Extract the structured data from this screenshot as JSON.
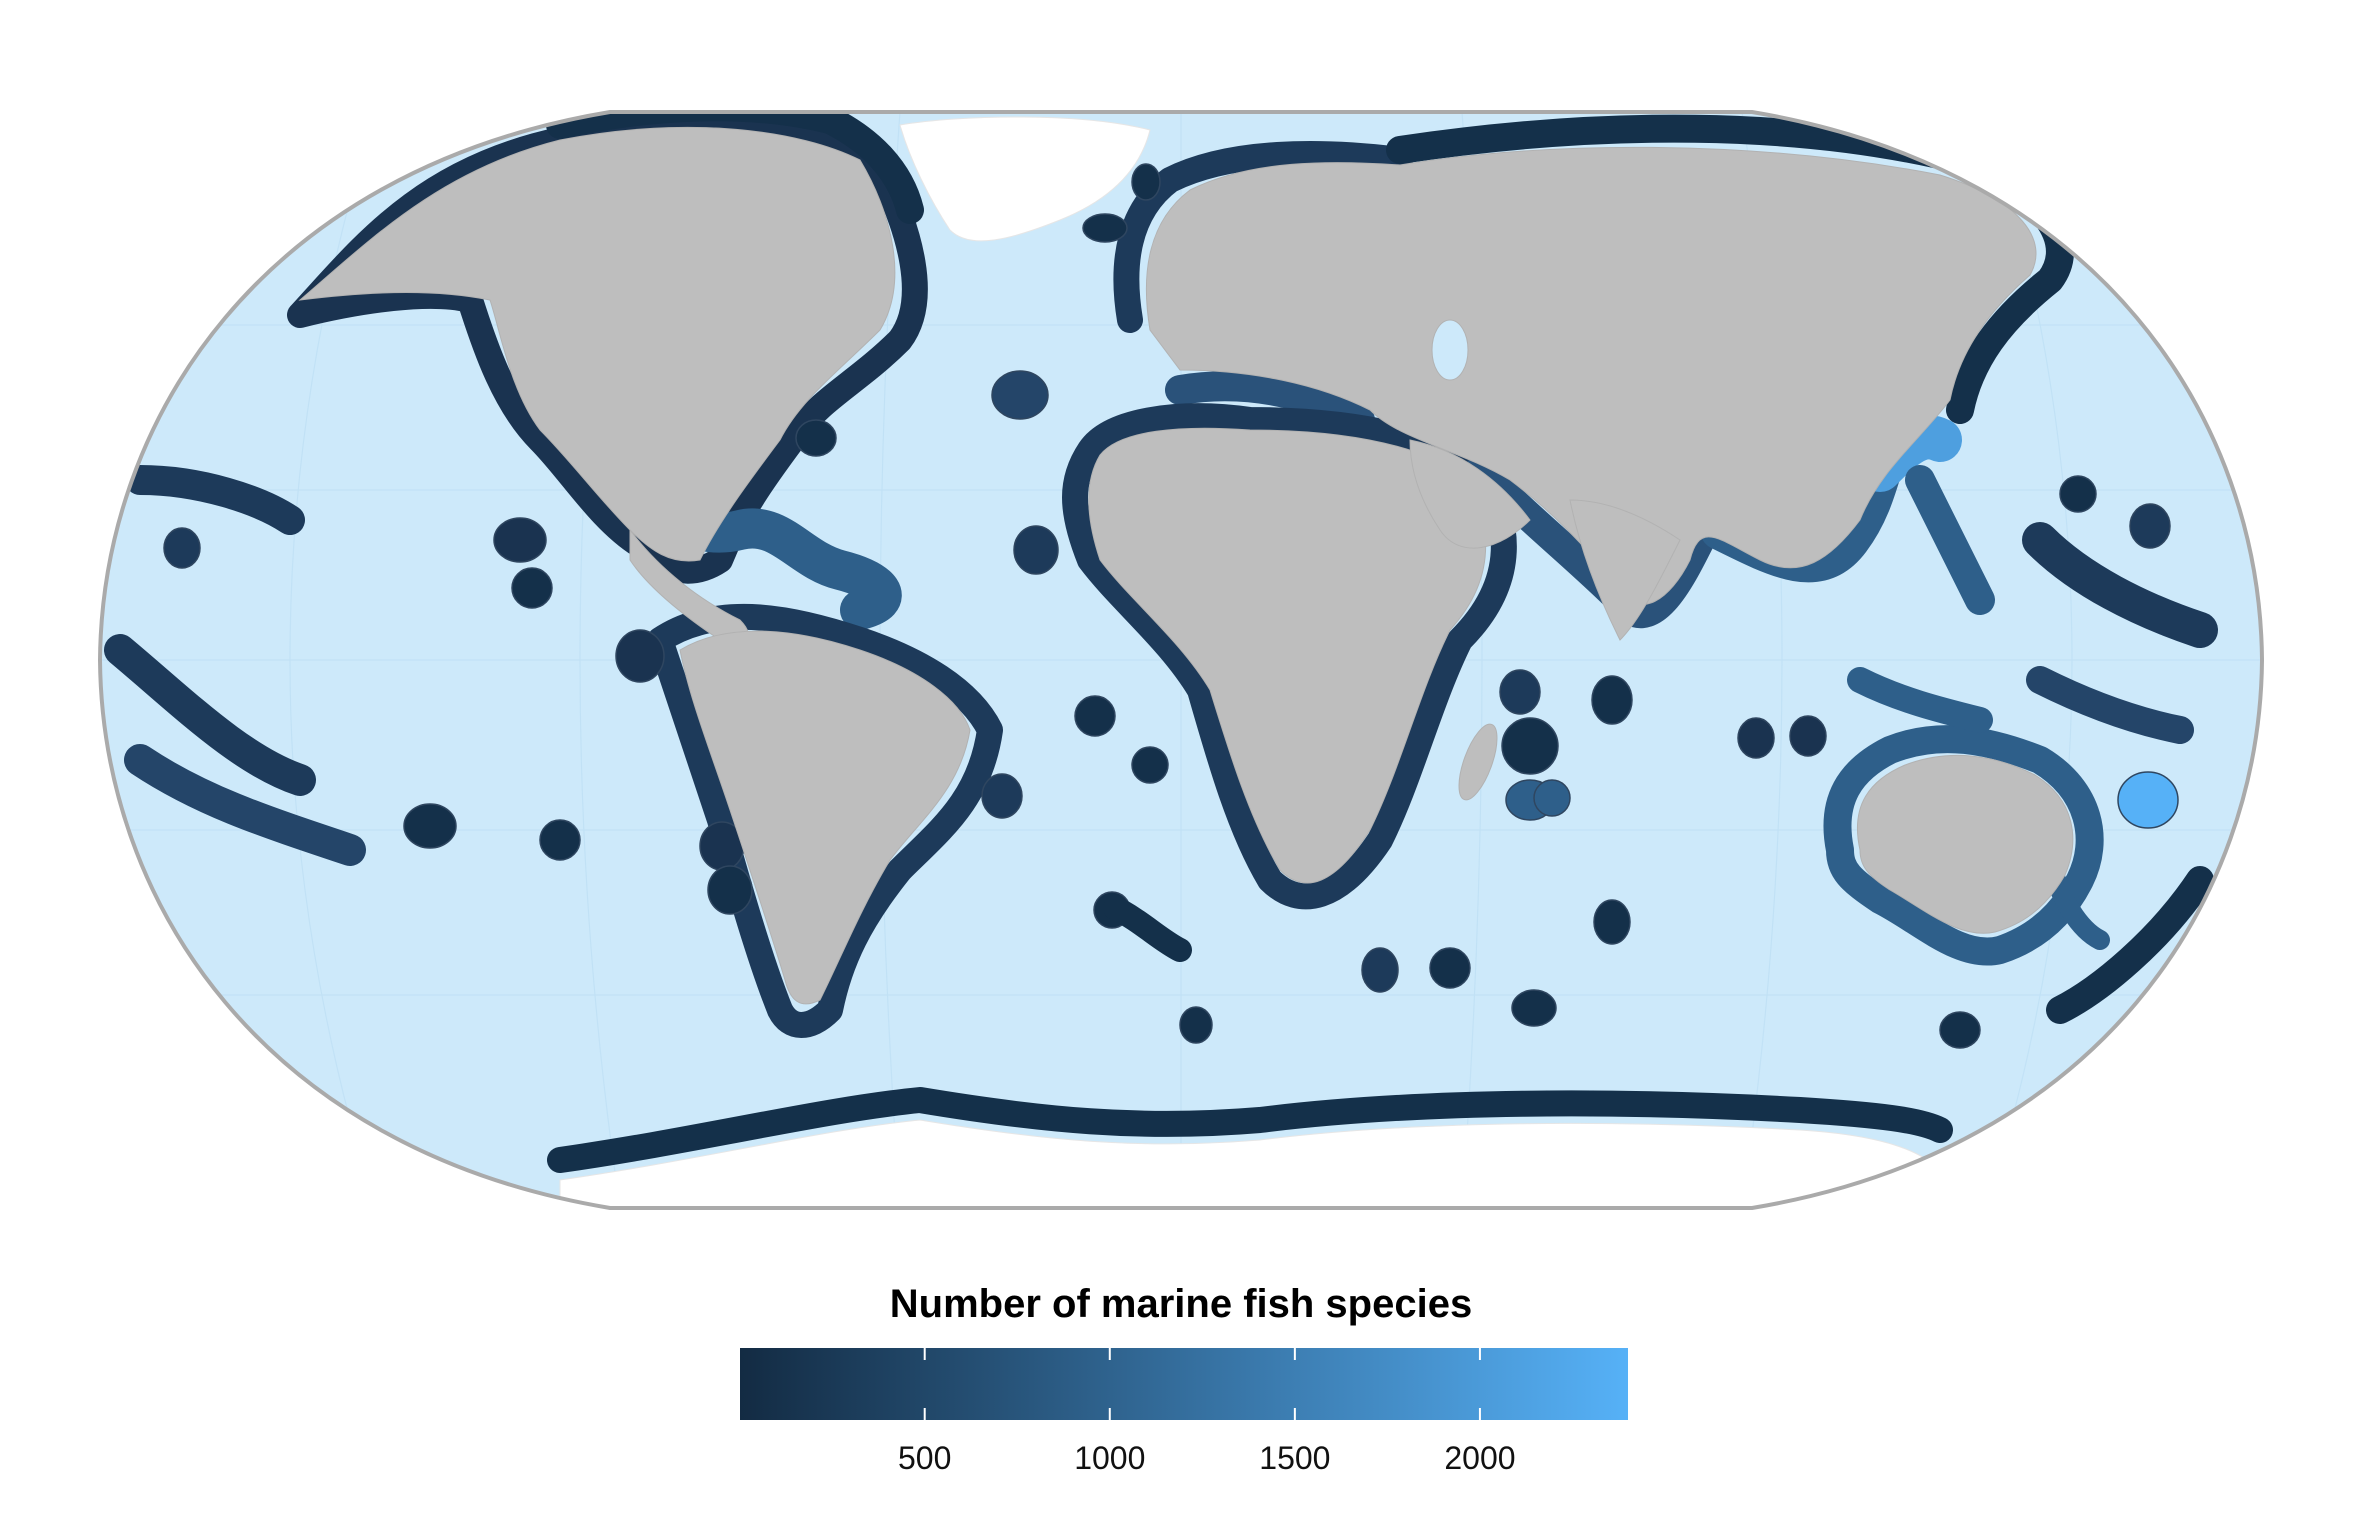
{
  "legend": {
    "title": "Number of marine fish species",
    "range": [
      1,
      2400
    ],
    "ticks": [
      500,
      1000,
      1500,
      2000
    ],
    "tick_labels": [
      "500",
      "1000",
      "1500",
      "2000"
    ],
    "colors": {
      "low": "#132B43",
      "high": "#56B1F7"
    }
  },
  "map": {
    "projection": "Robinson",
    "ocean_color": "#CDE9FA",
    "land_color": "#BEBEBE",
    "ice_color": "#FFFFFF",
    "border_color": "#AAAAAA"
  }
}
